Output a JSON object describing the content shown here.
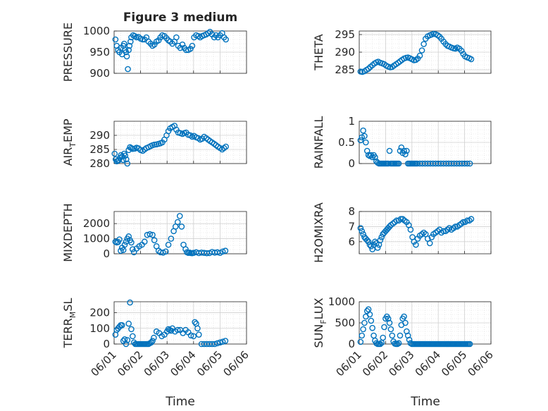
{
  "figure": {
    "title": "Figure 3 medium",
    "xlabel": "Time",
    "x_tick_labels": [
      "06/01",
      "06/02",
      "06/03",
      "06/04",
      "06/05",
      "06/06"
    ],
    "marker_color": "#0072BD",
    "background_color": "#FFFFFF"
  },
  "chart_data": [
    {
      "type": "scatter",
      "ylabel": "PRESSURE",
      "xlabel": "",
      "x_unit": "days after 06/01",
      "x_range": [
        0,
        5
      ],
      "ylim": [
        900,
        1000
      ],
      "yticks": [
        900,
        950,
        1000
      ],
      "grid": true,
      "x": [
        0.05,
        0.1,
        0.15,
        0.2,
        0.25,
        0.3,
        0.35,
        0.38,
        0.42,
        0.45,
        0.48,
        0.52,
        0.55,
        0.58,
        0.62,
        0.65,
        0.72,
        0.78,
        0.85,
        0.92,
        1.0,
        1.08,
        1.15,
        1.22,
        1.3,
        1.38,
        1.45,
        1.52,
        1.6,
        1.68,
        1.75,
        1.82,
        1.9,
        1.98,
        2.05,
        2.12,
        2.2,
        2.28,
        2.35,
        2.42,
        2.5,
        2.58,
        2.65,
        2.72,
        2.8,
        2.88,
        2.95,
        3.02,
        3.1,
        3.18,
        3.25,
        3.32,
        3.4,
        3.48,
        3.55,
        3.62,
        3.7,
        3.78,
        3.85,
        3.92,
        4.0,
        4.08,
        4.15,
        4.22
      ],
      "y": [
        980,
        965,
        955,
        950,
        960,
        945,
        965,
        970,
        955,
        950,
        940,
        910,
        955,
        965,
        975,
        985,
        990,
        988,
        985,
        986,
        982,
        980,
        980,
        985,
        975,
        970,
        965,
        968,
        975,
        978,
        985,
        990,
        988,
        983,
        978,
        975,
        970,
        975,
        985,
        965,
        960,
        968,
        960,
        955,
        955,
        958,
        965,
        985,
        990,
        988,
        985,
        988,
        990,
        992,
        995,
        998,
        992,
        985,
        990,
        985,
        990,
        995,
        985,
        980
      ]
    },
    {
      "type": "scatter",
      "ylabel": "THETA",
      "xlabel": "",
      "x_unit": "days after 06/01",
      "x_range": [
        0,
        5
      ],
      "ylim": [
        284,
        296
      ],
      "yticks": [
        285,
        290,
        295
      ],
      "grid": true,
      "x": [
        0.05,
        0.12,
        0.2,
        0.28,
        0.35,
        0.42,
        0.5,
        0.58,
        0.65,
        0.72,
        0.8,
        0.88,
        0.95,
        1.02,
        1.1,
        1.18,
        1.25,
        1.32,
        1.4,
        1.48,
        1.55,
        1.62,
        1.7,
        1.78,
        1.85,
        1.92,
        2.0,
        2.08,
        2.15,
        2.22,
        2.3,
        2.38,
        2.45,
        2.52,
        2.6,
        2.68,
        2.75,
        2.82,
        2.9,
        2.98,
        3.05,
        3.12,
        3.2,
        3.28,
        3.35,
        3.42,
        3.5,
        3.58,
        3.65,
        3.72,
        3.8,
        3.88,
        3.95,
        4.02,
        4.1,
        4.18,
        4.25
      ],
      "y": [
        284.5,
        284.4,
        284.6,
        285.0,
        285.3,
        285.8,
        286.3,
        286.8,
        287.1,
        287.3,
        287.0,
        286.8,
        286.6,
        286.2,
        285.9,
        285.7,
        285.8,
        286.2,
        286.6,
        287.0,
        287.4,
        287.8,
        288.2,
        288.4,
        288.5,
        288.3,
        288.0,
        287.7,
        287.8,
        288.2,
        289.0,
        290.5,
        292.3,
        293.8,
        294.5,
        294.8,
        295.0,
        295.2,
        295.1,
        294.8,
        294.4,
        293.8,
        293.0,
        292.3,
        291.8,
        291.6,
        291.3,
        291.1,
        291.0,
        291.3,
        291.0,
        290.4,
        289.5,
        288.8,
        288.5,
        288.3,
        288.0
      ]
    },
    {
      "type": "scatter",
      "ylabel": "AIR_TEMP",
      "xlabel": "",
      "x_unit": "days after 06/01",
      "x_range": [
        0,
        5
      ],
      "ylim": [
        280,
        295
      ],
      "yticks": [
        280,
        285,
        290
      ],
      "grid": true,
      "x": [
        0.02,
        0.06,
        0.1,
        0.14,
        0.18,
        0.22,
        0.26,
        0.3,
        0.34,
        0.38,
        0.42,
        0.46,
        0.5,
        0.55,
        0.6,
        0.65,
        0.7,
        0.78,
        0.85,
        0.92,
        1.0,
        1.08,
        1.15,
        1.22,
        1.3,
        1.38,
        1.45,
        1.52,
        1.6,
        1.68,
        1.75,
        1.82,
        1.9,
        1.98,
        2.05,
        2.12,
        2.2,
        2.28,
        2.35,
        2.42,
        2.5,
        2.58,
        2.65,
        2.72,
        2.8,
        2.88,
        2.95,
        3.02,
        3.1,
        3.18,
        3.25,
        3.32,
        3.4,
        3.48,
        3.55,
        3.62,
        3.7,
        3.78,
        3.85,
        3.92,
        4.0,
        4.08,
        4.15,
        4.22
      ],
      "y": [
        283.5,
        281.5,
        280.8,
        281.0,
        281.2,
        282.0,
        283.0,
        282.5,
        281.3,
        283.5,
        282.8,
        281.5,
        280.0,
        284.8,
        285.8,
        285.5,
        285.2,
        285.3,
        285.6,
        285.4,
        284.8,
        284.5,
        285.0,
        285.5,
        285.8,
        286.2,
        286.5,
        286.7,
        286.8,
        287.0,
        287.2,
        287.5,
        288.5,
        290.0,
        291.5,
        292.5,
        293.0,
        293.4,
        292.0,
        291.0,
        290.8,
        290.5,
        290.8,
        291.0,
        290.2,
        290.0,
        289.5,
        289.8,
        289.3,
        289.0,
        288.5,
        288.8,
        289.5,
        289.0,
        288.5,
        288.0,
        287.5,
        287.0,
        286.5,
        286.0,
        285.5,
        285.0,
        285.5,
        286.0
      ]
    },
    {
      "type": "scatter",
      "ylabel": "RAINFALL",
      "xlabel": "",
      "x_unit": "days after 06/01",
      "x_range": [
        0,
        5
      ],
      "ylim": [
        0,
        1
      ],
      "yticks": [
        0,
        0.5,
        1
      ],
      "grid": true,
      "x": [
        0.05,
        0.1,
        0.15,
        0.2,
        0.25,
        0.3,
        0.35,
        0.4,
        0.45,
        0.5,
        0.55,
        0.6,
        0.65,
        0.7,
        0.75,
        0.8,
        0.85,
        0.9,
        0.95,
        1.0,
        1.05,
        1.1,
        1.15,
        1.2,
        1.25,
        1.3,
        1.35,
        1.4,
        1.45,
        1.5,
        1.55,
        1.6,
        1.65,
        1.7,
        1.75,
        1.8,
        1.85,
        1.9,
        1.95,
        2.0,
        2.05,
        2.1,
        2.15,
        2.2,
        2.3,
        2.4,
        2.5,
        2.6,
        2.7,
        2.8,
        2.9,
        3.0,
        3.1,
        3.2,
        3.3,
        3.4,
        3.5,
        3.6,
        3.7,
        3.8,
        3.9,
        4.0,
        4.1,
        4.2
      ],
      "y": [
        0.55,
        0.62,
        0.78,
        0.65,
        0.5,
        0.3,
        0.2,
        0.18,
        0.2,
        0.15,
        0.2,
        0.15,
        0.05,
        0.02,
        0.0,
        0.0,
        0.0,
        0.0,
        0.0,
        0.0,
        0.0,
        0.0,
        0.3,
        0.0,
        0.0,
        0.0,
        0.0,
        0.0,
        0.0,
        0.0,
        0.3,
        0.38,
        0.25,
        0.3,
        0.22,
        0.3,
        0.0,
        0.0,
        0.0,
        0.0,
        0.0,
        0.0,
        0.0,
        0.0,
        0.0,
        0.0,
        0.0,
        0.0,
        0.0,
        0.0,
        0.0,
        0.0,
        0.0,
        0.0,
        0.0,
        0.0,
        0.0,
        0.0,
        0.0,
        0.0,
        0.0,
        0.0,
        0.0,
        0.0
      ]
    },
    {
      "type": "scatter",
      "ylabel": "MIXDEPTH",
      "xlabel": "",
      "x_unit": "days after 06/01",
      "x_range": [
        0,
        5
      ],
      "ylim": [
        0,
        2800
      ],
      "yticks": [
        0,
        1000,
        2000
      ],
      "grid": true,
      "x": [
        0.05,
        0.1,
        0.15,
        0.2,
        0.25,
        0.3,
        0.35,
        0.4,
        0.45,
        0.5,
        0.55,
        0.6,
        0.65,
        0.7,
        0.75,
        0.85,
        0.95,
        1.05,
        1.15,
        1.25,
        1.35,
        1.45,
        1.52,
        1.6,
        1.68,
        1.75,
        1.85,
        1.95,
        2.05,
        2.15,
        2.25,
        2.32,
        2.4,
        2.48,
        2.55,
        2.62,
        2.7,
        2.75,
        2.8,
        2.85,
        2.9,
        2.95,
        3.0,
        3.1,
        3.2,
        3.3,
        3.4,
        3.5,
        3.6,
        3.7,
        3.8,
        3.9,
        4.0,
        4.1,
        4.2
      ],
      "y": [
        800,
        750,
        780,
        950,
        200,
        400,
        250,
        600,
        800,
        1000,
        1150,
        900,
        750,
        300,
        100,
        350,
        500,
        600,
        800,
        1250,
        1300,
        1250,
        900,
        500,
        200,
        100,
        80,
        150,
        600,
        1000,
        1500,
        1800,
        2100,
        2500,
        1800,
        600,
        300,
        100,
        60,
        80,
        50,
        40,
        60,
        100,
        50,
        80,
        60,
        40,
        50,
        120,
        80,
        100,
        60,
        150,
        200
      ]
    },
    {
      "type": "scatter",
      "ylabel": "H2OMIXRA",
      "xlabel": "",
      "x_unit": "days after 06/01",
      "x_range": [
        0,
        5
      ],
      "ylim": [
        5.2,
        8
      ],
      "yticks": [
        6,
        7,
        8
      ],
      "grid": true,
      "x": [
        0.05,
        0.1,
        0.15,
        0.2,
        0.25,
        0.3,
        0.35,
        0.4,
        0.45,
        0.5,
        0.55,
        0.6,
        0.65,
        0.7,
        0.75,
        0.8,
        0.85,
        0.9,
        0.95,
        1.0,
        1.05,
        1.1,
        1.15,
        1.2,
        1.28,
        1.35,
        1.42,
        1.5,
        1.58,
        1.65,
        1.72,
        1.8,
        1.88,
        1.95,
        2.02,
        2.08,
        2.15,
        2.22,
        2.3,
        2.38,
        2.45,
        2.52,
        2.6,
        2.68,
        2.75,
        2.82,
        2.9,
        2.98,
        3.05,
        3.12,
        3.2,
        3.28,
        3.35,
        3.42,
        3.5,
        3.58,
        3.65,
        3.72,
        3.8,
        3.88,
        3.95,
        4.02,
        4.1,
        4.18,
        4.25
      ],
      "y": [
        6.9,
        6.7,
        6.5,
        6.3,
        6.2,
        6.1,
        6.0,
        5.8,
        5.7,
        5.5,
        5.8,
        6.0,
        5.9,
        5.6,
        5.8,
        6.1,
        6.3,
        6.5,
        6.6,
        6.7,
        6.8,
        6.9,
        7.0,
        7.1,
        7.2,
        7.3,
        7.4,
        7.4,
        7.5,
        7.5,
        7.4,
        7.3,
        7.1,
        6.8,
        6.3,
        6.0,
        5.8,
        6.2,
        6.4,
        6.5,
        6.6,
        6.5,
        6.2,
        5.9,
        6.3,
        6.5,
        6.6,
        6.7,
        6.8,
        6.6,
        6.7,
        6.7,
        6.8,
        6.9,
        6.8,
        6.9,
        7.0,
        7.0,
        7.1,
        7.2,
        7.3,
        7.3,
        7.4,
        7.4,
        7.5
      ]
    },
    {
      "type": "scatter",
      "ylabel": "TERR_MSL",
      "xlabel": "",
      "x_unit": "days after 06/01",
      "x_range": [
        0,
        5
      ],
      "ylim": [
        0,
        270
      ],
      "yticks": [
        0,
        100,
        200
      ],
      "grid": true,
      "x": [
        0.05,
        0.1,
        0.15,
        0.2,
        0.25,
        0.3,
        0.35,
        0.4,
        0.45,
        0.5,
        0.55,
        0.6,
        0.65,
        0.7,
        0.75,
        0.8,
        0.85,
        0.9,
        0.95,
        1.0,
        1.05,
        1.1,
        1.15,
        1.2,
        1.25,
        1.3,
        1.35,
        1.4,
        1.45,
        1.5,
        1.6,
        1.7,
        1.8,
        1.9,
        2.0,
        2.05,
        2.1,
        2.15,
        2.2,
        2.3,
        2.4,
        2.5,
        2.6,
        2.7,
        2.8,
        2.9,
        3.0,
        3.05,
        3.1,
        3.15,
        3.2,
        3.3,
        3.4,
        3.5,
        3.6,
        3.7,
        3.8,
        3.9,
        4.0,
        4.1,
        4.2
      ],
      "y": [
        60,
        90,
        100,
        110,
        120,
        120,
        20,
        30,
        0,
        25,
        130,
        265,
        95,
        50,
        10,
        0,
        0,
        0,
        0,
        0,
        0,
        0,
        0,
        0,
        0,
        0,
        5,
        10,
        20,
        40,
        80,
        70,
        50,
        60,
        80,
        95,
        90,
        85,
        100,
        80,
        90,
        90,
        70,
        90,
        75,
        55,
        50,
        140,
        130,
        100,
        60,
        0,
        0,
        0,
        0,
        0,
        0,
        5,
        10,
        15,
        20
      ]
    },
    {
      "type": "scatter",
      "ylabel": "SUN_FLUX",
      "xlabel": "",
      "x_unit": "days after 06/01",
      "x_range": [
        0,
        5
      ],
      "ylim": [
        0,
        1000
      ],
      "yticks": [
        0,
        500,
        1000
      ],
      "grid": true,
      "x": [
        0.05,
        0.1,
        0.15,
        0.2,
        0.25,
        0.3,
        0.35,
        0.4,
        0.45,
        0.5,
        0.55,
        0.6,
        0.65,
        0.7,
        0.75,
        0.8,
        0.85,
        0.9,
        0.95,
        1.0,
        1.05,
        1.1,
        1.15,
        1.2,
        1.25,
        1.3,
        1.35,
        1.4,
        1.45,
        1.5,
        1.55,
        1.6,
        1.65,
        1.7,
        1.75,
        1.8,
        1.85,
        1.9,
        1.95,
        2.0,
        2.05,
        2.1,
        2.15,
        2.2,
        2.25,
        2.3,
        2.35,
        2.4,
        2.45,
        2.5,
        2.55,
        2.6,
        2.65,
        2.7,
        2.75,
        2.8,
        2.85,
        2.9,
        2.95,
        3.0,
        3.05,
        3.1,
        3.15,
        3.2,
        3.25,
        3.3,
        3.35,
        3.4,
        3.45,
        3.5,
        3.55,
        3.6,
        3.65,
        3.7,
        3.75,
        3.8,
        3.85,
        3.9,
        3.95,
        4.0,
        4.05,
        4.1,
        4.15,
        4.2
      ],
      "y": [
        50,
        200,
        350,
        500,
        650,
        780,
        820,
        700,
        550,
        380,
        200,
        80,
        20,
        0,
        0,
        0,
        30,
        150,
        400,
        600,
        650,
        600,
        500,
        350,
        200,
        60,
        10,
        0,
        0,
        20,
        200,
        450,
        600,
        650,
        500,
        300,
        200,
        100,
        20,
        0,
        0,
        0,
        0,
        0,
        0,
        0,
        0,
        0,
        0,
        0,
        0,
        0,
        0,
        0,
        0,
        0,
        0,
        0,
        0,
        0,
        0,
        0,
        0,
        0,
        0,
        0,
        0,
        0,
        0,
        0,
        0,
        0,
        0,
        0,
        0,
        0,
        0,
        0,
        0,
        0,
        0,
        0,
        0,
        0
      ]
    }
  ]
}
